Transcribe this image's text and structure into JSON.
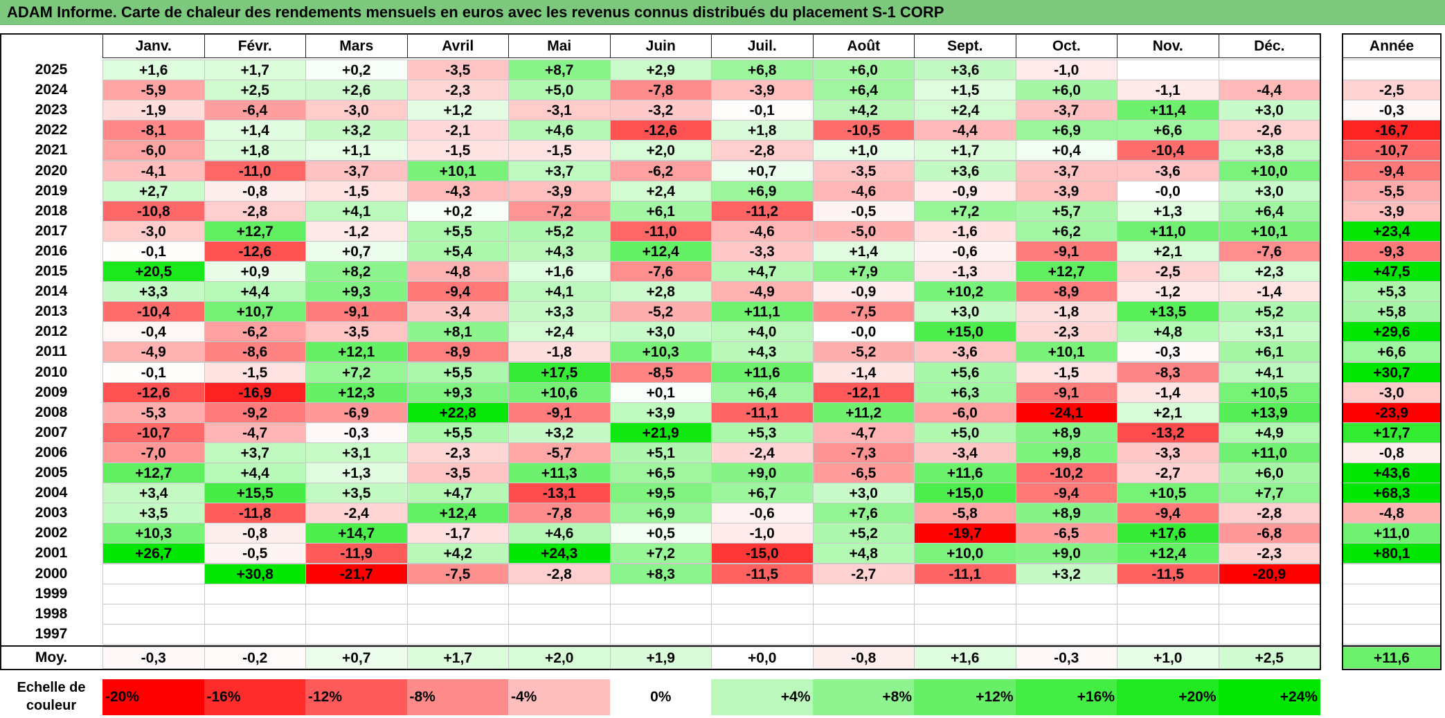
{
  "title": "ADAM Informe. Carte de chaleur des rendements mensuels en euros avec les revenus connus distribués du placement S-1 CORP",
  "chart_data": {
    "type": "heatmap",
    "title": "ADAM Informe. Carte de chaleur des rendements mensuels en euros avec les revenus connus distribués du placement S-1 CORP",
    "columns": [
      "Janv.",
      "Févr.",
      "Mars",
      "Avril",
      "Mai",
      "Juin",
      "Juil.",
      "Août",
      "Sept.",
      "Oct.",
      "Nov.",
      "Déc."
    ],
    "year_column": "Année",
    "rows": [
      {
        "year": "2025",
        "months": [
          "+1,6",
          "+1,7",
          "+0,2",
          "-3,5",
          "+8,7",
          "+2,9",
          "+6,8",
          "+6,0",
          "+3,6",
          "-1,0",
          "",
          ""
        ],
        "annual": ""
      },
      {
        "year": "2024",
        "months": [
          "-5,9",
          "+2,5",
          "+2,6",
          "-2,3",
          "+5,0",
          "-7,8",
          "-3,9",
          "+6,4",
          "+1,5",
          "+6,0",
          "-1,1",
          "-4,4"
        ],
        "annual": "-2,5"
      },
      {
        "year": "2023",
        "months": [
          "-1,9",
          "-6,4",
          "-3,0",
          "+1,2",
          "-3,1",
          "-3,2",
          "-0,1",
          "+4,2",
          "+2,4",
          "-3,7",
          "+11,4",
          "+3,0"
        ],
        "annual": "-0,3"
      },
      {
        "year": "2022",
        "months": [
          "-8,1",
          "+1,4",
          "+3,2",
          "-2,1",
          "+4,6",
          "-12,6",
          "+1,8",
          "-10,5",
          "-4,4",
          "+6,9",
          "+6,6",
          "-2,6"
        ],
        "annual": "-16,7"
      },
      {
        "year": "2021",
        "months": [
          "-6,0",
          "+1,8",
          "+1,1",
          "-1,5",
          "-1,5",
          "+2,0",
          "-2,8",
          "+1,0",
          "+1,7",
          "+0,4",
          "-10,4",
          "+3,8"
        ],
        "annual": "-10,7"
      },
      {
        "year": "2020",
        "months": [
          "-4,1",
          "-11,0",
          "-3,7",
          "+10,1",
          "+3,7",
          "-6,2",
          "+0,7",
          "-3,5",
          "+3,6",
          "-3,7",
          "-3,6",
          "+10,0"
        ],
        "annual": "-9,4"
      },
      {
        "year": "2019",
        "months": [
          "+2,7",
          "-0,8",
          "-1,5",
          "-4,3",
          "-3,9",
          "+2,4",
          "+6,9",
          "-4,6",
          "-0,9",
          "-3,9",
          "-0,0",
          "+3,0"
        ],
        "annual": "-5,5"
      },
      {
        "year": "2018",
        "months": [
          "-10,8",
          "-2,8",
          "+4,1",
          "+0,2",
          "-7,2",
          "+6,1",
          "-11,2",
          "-0,5",
          "+7,2",
          "+5,7",
          "+1,3",
          "+6,4"
        ],
        "annual": "-3,9"
      },
      {
        "year": "2017",
        "months": [
          "-3,0",
          "+12,7",
          "-1,2",
          "+5,5",
          "+5,2",
          "-11,0",
          "-4,6",
          "-5,0",
          "-1,6",
          "+6,2",
          "+11,0",
          "+10,1"
        ],
        "annual": "+23,4"
      },
      {
        "year": "2016",
        "months": [
          "-0,1",
          "-12,6",
          "+0,7",
          "+5,4",
          "+4,3",
          "+12,4",
          "-3,3",
          "+1,4",
          "-0,6",
          "-9,1",
          "+2,1",
          "-7,6"
        ],
        "annual": "-9,3"
      },
      {
        "year": "2015",
        "months": [
          "+20,5",
          "+0,9",
          "+8,2",
          "-4,8",
          "+1,6",
          "-7,6",
          "+4,7",
          "+7,9",
          "-1,3",
          "+12,7",
          "-2,5",
          "+2,3"
        ],
        "annual": "+47,5"
      },
      {
        "year": "2014",
        "months": [
          "+3,3",
          "+4,4",
          "+9,3",
          "-9,4",
          "+4,1",
          "+2,8",
          "-4,9",
          "-0,9",
          "+10,2",
          "-8,9",
          "-1,2",
          "-1,4"
        ],
        "annual": "+5,3"
      },
      {
        "year": "2013",
        "months": [
          "-10,4",
          "+10,7",
          "-9,1",
          "-3,4",
          "+3,3",
          "-5,2",
          "+11,1",
          "-7,5",
          "+3,0",
          "-1,8",
          "+13,5",
          "+5,2"
        ],
        "annual": "+5,8"
      },
      {
        "year": "2012",
        "months": [
          "-0,4",
          "-6,2",
          "-3,5",
          "+8,1",
          "+2,4",
          "+3,0",
          "+4,0",
          "-0,0",
          "+15,0",
          "-2,3",
          "+4,8",
          "+3,1"
        ],
        "annual": "+29,6"
      },
      {
        "year": "2011",
        "months": [
          "-4,9",
          "-8,6",
          "+12,1",
          "-8,9",
          "-1,8",
          "+10,3",
          "+4,3",
          "-5,2",
          "-3,6",
          "+10,1",
          "-0,3",
          "+6,1"
        ],
        "annual": "+6,6"
      },
      {
        "year": "2010",
        "months": [
          "-0,1",
          "-1,5",
          "+7,2",
          "+5,5",
          "+17,5",
          "-8,5",
          "+11,6",
          "-1,4",
          "+5,6",
          "-1,5",
          "-8,3",
          "+4,1"
        ],
        "annual": "+30,7"
      },
      {
        "year": "2009",
        "months": [
          "-12,6",
          "-16,9",
          "+12,3",
          "+9,3",
          "+10,6",
          "+0,1",
          "+6,4",
          "-12,1",
          "+6,3",
          "-9,1",
          "-1,4",
          "+10,5"
        ],
        "annual": "-3,0"
      },
      {
        "year": "2008",
        "months": [
          "-5,3",
          "-9,2",
          "-6,9",
          "+22,8",
          "-9,1",
          "+3,9",
          "-11,1",
          "+11,2",
          "-6,0",
          "-24,1",
          "+2,1",
          "+13,9"
        ],
        "annual": "-23,9"
      },
      {
        "year": "2007",
        "months": [
          "-10,7",
          "-4,7",
          "-0,3",
          "+5,5",
          "+3,2",
          "+21,9",
          "+5,3",
          "-4,7",
          "+5,0",
          "+8,9",
          "-13,2",
          "+4,9"
        ],
        "annual": "+17,7"
      },
      {
        "year": "2006",
        "months": [
          "-7,0",
          "+3,7",
          "+3,1",
          "-2,3",
          "-5,7",
          "+5,1",
          "-2,4",
          "-7,3",
          "-3,4",
          "+9,8",
          "-3,3",
          "+11,0"
        ],
        "annual": "-0,8"
      },
      {
        "year": "2005",
        "months": [
          "+12,7",
          "+4,4",
          "+1,3",
          "-3,5",
          "+11,3",
          "+6,5",
          "+9,0",
          "-6,5",
          "+11,6",
          "-10,2",
          "-2,7",
          "+6,0"
        ],
        "annual": "+43,6"
      },
      {
        "year": "2004",
        "months": [
          "+3,4",
          "+15,5",
          "+3,5",
          "+4,7",
          "-13,1",
          "+9,5",
          "+6,7",
          "+3,0",
          "+15,0",
          "-9,4",
          "+10,5",
          "+7,7"
        ],
        "annual": "+68,3"
      },
      {
        "year": "2003",
        "months": [
          "+3,5",
          "-11,8",
          "-2,4",
          "+12,4",
          "-7,8",
          "+6,9",
          "-0,6",
          "+7,6",
          "-5,8",
          "+8,9",
          "-9,4",
          "-2,8"
        ],
        "annual": "-4,8"
      },
      {
        "year": "2002",
        "months": [
          "+10,3",
          "-0,8",
          "+14,7",
          "-1,7",
          "+4,6",
          "+0,5",
          "-1,0",
          "+5,2",
          "-19,7",
          "-6,5",
          "+17,6",
          "-6,8"
        ],
        "annual": "+11,0"
      },
      {
        "year": "2001",
        "months": [
          "+26,7",
          "-0,5",
          "-11,9",
          "+4,2",
          "+24,3",
          "+7,2",
          "-15,0",
          "+4,8",
          "+10,0",
          "+9,0",
          "+12,4",
          "-2,3"
        ],
        "annual": "+80,1"
      },
      {
        "year": "2000",
        "months": [
          "",
          "+30,8",
          "-21,7",
          "-7,5",
          "-2,8",
          "+8,3",
          "-11,5",
          "-2,7",
          "-11,1",
          "+3,2",
          "-11,5",
          "-20,9"
        ],
        "annual": ""
      },
      {
        "year": "1999",
        "months": [
          "",
          "",
          "",
          "",
          "",
          "",
          "",
          "",
          "",
          "",
          "",
          ""
        ],
        "annual": ""
      },
      {
        "year": "1998",
        "months": [
          "",
          "",
          "",
          "",
          "",
          "",
          "",
          "",
          "",
          "",
          "",
          ""
        ],
        "annual": ""
      },
      {
        "year": "1997",
        "months": [
          "",
          "",
          "",
          "",
          "",
          "",
          "",
          "",
          "",
          "",
          "",
          ""
        ],
        "annual": ""
      }
    ],
    "average": {
      "label": "Moy.",
      "months": [
        "-0,3",
        "-0,2",
        "+0,7",
        "+1,7",
        "+2,0",
        "+1,9",
        "+0,0",
        "-0,8",
        "+1,6",
        "-0,3",
        "+1,0",
        "+2,5"
      ],
      "annual": "+11,6"
    },
    "color_scale": {
      "label_line1": "Echelle de",
      "label_line2": "couleur",
      "steps": [
        "-20%",
        "-16%",
        "-12%",
        "-8%",
        "-4%",
        "0%",
        "+4%",
        "+8%",
        "+12%",
        "+16%",
        "+20%",
        "+24%"
      ],
      "negative_color": "#ff0000",
      "neutral_color": "#ffffff",
      "positive_color": "#00e600"
    }
  }
}
